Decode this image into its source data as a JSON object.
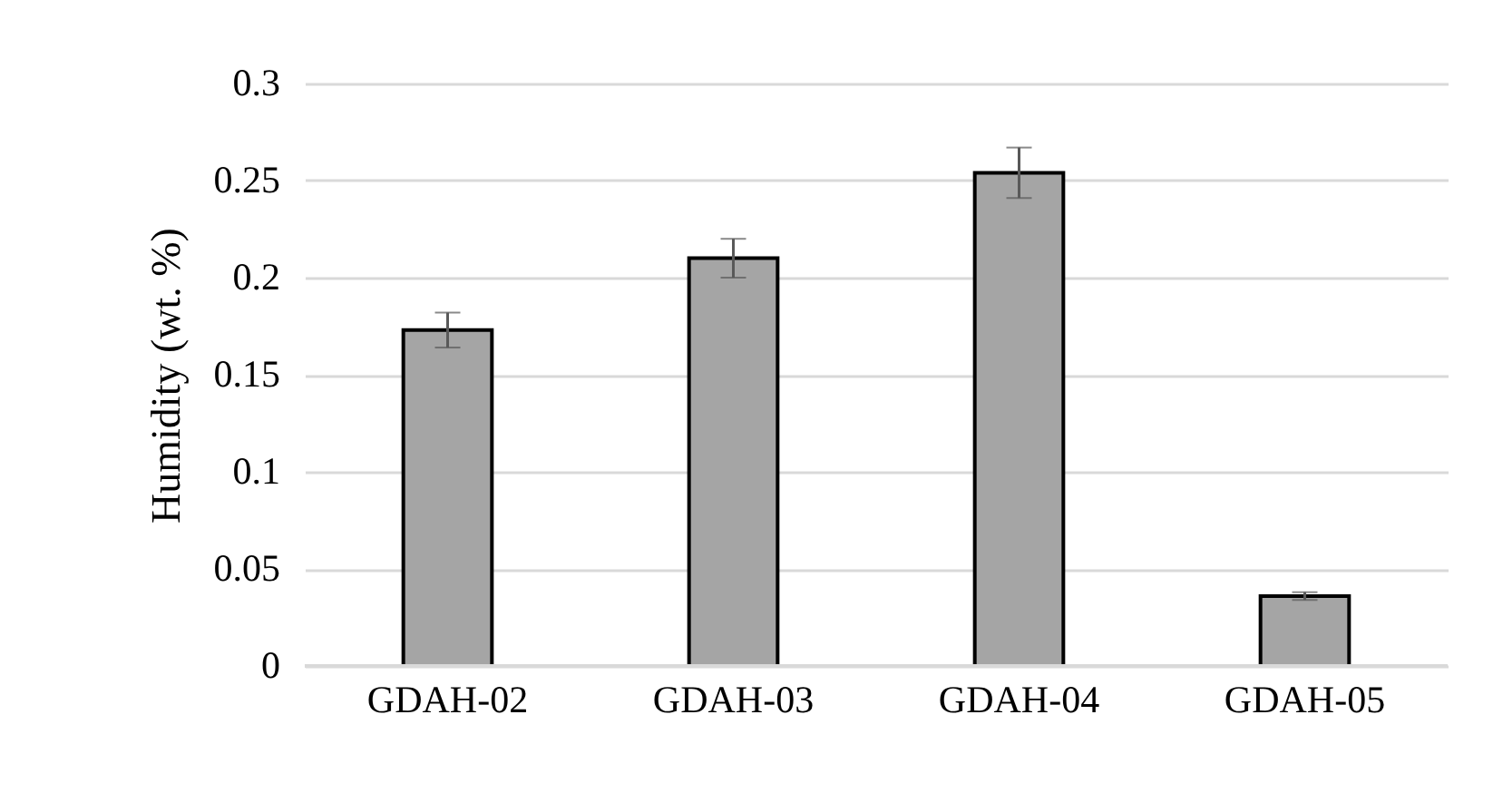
{
  "chart_data": {
    "type": "bar",
    "ylabel": "Humidity (wt. %)",
    "categories": [
      "GDAH-02",
      "GDAH-03",
      "GDAH-04",
      "GDAH-05"
    ],
    "values": [
      0.173,
      0.21,
      0.254,
      0.036
    ],
    "errors": [
      0.009,
      0.01,
      0.013,
      0.002
    ],
    "color": "#a5a5a5",
    "ylim": [
      0,
      0.3
    ],
    "yticks": [
      0,
      0.05,
      0.1,
      0.15,
      0.2,
      0.25,
      0.3
    ],
    "grid": "y"
  }
}
